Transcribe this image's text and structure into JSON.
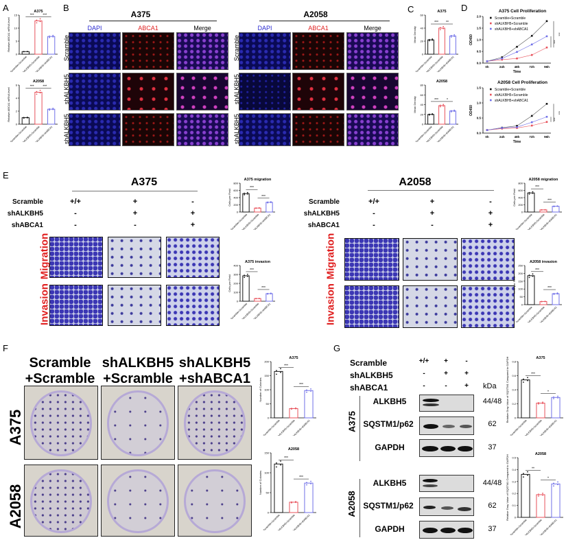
{
  "panels": {
    "A": {
      "letter": "A"
    },
    "B": {
      "letter": "B",
      "cell_lines": [
        "A375",
        "A2058"
      ],
      "channels": [
        "DAPI",
        "ABCA1",
        "Merge"
      ],
      "row_labels": [
        [
          "Scramble",
          "+Scramble"
        ],
        [
          "shALKBH5",
          "+Scramble"
        ],
        [
          "shALKBH5",
          "+shABCA1"
        ]
      ]
    },
    "C": {
      "letter": "C"
    },
    "D": {
      "letter": "D"
    },
    "E": {
      "letter": "E",
      "cell_lines": [
        "A375",
        "A2058"
      ],
      "conditions": {
        "labels": [
          "Scramble",
          "shALKBH5",
          "shABCA1"
        ],
        "columns": [
          [
            "+/+",
            "-",
            "-"
          ],
          [
            "+",
            "+",
            "-"
          ],
          [
            "-",
            "+",
            "+"
          ]
        ]
      },
      "row_labels": [
        "Migration",
        "Invasion"
      ]
    },
    "F": {
      "letter": "F",
      "column_labels": [
        [
          "Scramble",
          "+Scramble"
        ],
        [
          "shALKBH5",
          "+Scramble"
        ],
        [
          "shALKBH5",
          "+shABCA1"
        ]
      ],
      "row_labels": [
        "A375",
        "A2058"
      ]
    },
    "G": {
      "letter": "G",
      "conditions": {
        "labels": [
          "Scramble",
          "shALKBH5",
          "shABCA1"
        ],
        "columns": [
          [
            "+/+",
            "-",
            "-"
          ],
          [
            "+",
            "+",
            "-"
          ],
          [
            "-",
            "+",
            "+"
          ]
        ]
      },
      "kda_label": "kDa",
      "blots": [
        {
          "cell_line": "A375",
          "rows": [
            {
              "protein": "ALKBH5",
              "kda": "44/48"
            },
            {
              "protein": "SQSTM1/p62",
              "kda": "62"
            },
            {
              "protein": "GAPDH",
              "kda": "37"
            }
          ]
        },
        {
          "cell_line": "A2058",
          "rows": [
            {
              "protein": "ALKBH5",
              "kda": "44/48"
            },
            {
              "protein": "SQSTM1/p62",
              "kda": "62"
            },
            {
              "protein": "GAPDH",
              "kda": "37"
            }
          ]
        }
      ]
    }
  },
  "groups": [
    "Scramble+Scramble",
    "shALKBH5+Scramble",
    "shALKBH5+shABCA1"
  ],
  "colors": {
    "black": "#111111",
    "red": "#e8505a",
    "blue": "#6f6fe8",
    "red_label": "#e02020",
    "dapi": "#2a2ad0"
  },
  "chart_data": [
    {
      "id": "A-A375",
      "type": "bar",
      "title": "A375",
      "ylabel": "Relative ABCA1 mRNA level",
      "categories": [
        "Scramble+Scramble",
        "shALKBH5+Scramble",
        "shALKBH5+shABCA1"
      ],
      "values": [
        1.0,
        12.8,
        6.8
      ],
      "ylim": [
        0,
        15
      ],
      "yticks": [
        0,
        5,
        10,
        15
      ],
      "significance": [
        "***",
        "***"
      ]
    },
    {
      "id": "A-A2058",
      "type": "bar",
      "title": "A2058",
      "ylabel": "Relative ABCA1 mRNA level",
      "categories": [
        "Scramble+Scramble",
        "shALKBH5+Scramble",
        "shALKBH5+shABCA1"
      ],
      "values": [
        1.0,
        4.9,
        2.3
      ],
      "ylim": [
        0,
        6
      ],
      "yticks": [
        0,
        2,
        4,
        6
      ],
      "significance": [
        "***",
        "***"
      ]
    },
    {
      "id": "C-A375",
      "type": "bar",
      "title": "A375",
      "ylabel": "Mean Density",
      "categories": [
        "Scramble+Scramble",
        "shALKBH5+Scramble",
        "shALKBH5+shABCA1"
      ],
      "values": [
        22,
        40,
        28
      ],
      "ylim": [
        0,
        60
      ],
      "yticks": [
        0,
        20,
        40,
        60
      ],
      "significance": [
        "***",
        "**"
      ]
    },
    {
      "id": "C-A2058",
      "type": "bar",
      "title": "A2058",
      "ylabel": "Mean Density",
      "categories": [
        "Scramble+Scramble",
        "shALKBH5+Scramble",
        "shALKBH5+shABCA1"
      ],
      "values": [
        20,
        38,
        27
      ],
      "ylim": [
        0,
        80
      ],
      "yticks": [
        0,
        20,
        40,
        60,
        80
      ],
      "significance": [
        "***",
        "*"
      ]
    },
    {
      "id": "D-A375",
      "type": "line",
      "title": "A375 Cell Proliferation",
      "xlabel": "Time",
      "ylabel": "OD450",
      "x": [
        "0h",
        "24h",
        "48h",
        "72h",
        "96h"
      ],
      "ylim": [
        0,
        2.0
      ],
      "yticks": [
        0.0,
        0.5,
        1.0,
        1.5,
        2.0
      ],
      "series": [
        {
          "name": "Scramble+Scramble",
          "values": [
            0.08,
            0.25,
            0.7,
            1.17,
            1.8
          ]
        },
        {
          "name": "shALKBH5+Scramble",
          "values": [
            0.08,
            0.15,
            0.2,
            0.35,
            0.67
          ]
        },
        {
          "name": "shALKBH5+shABCA1",
          "values": [
            0.08,
            0.2,
            0.48,
            0.8,
            1.15
          ]
        }
      ],
      "significance": [
        "***",
        "***"
      ]
    },
    {
      "id": "D-A2058",
      "type": "line",
      "title": "A2058 Cell Proliferation",
      "xlabel": "Time",
      "ylabel": "OD450",
      "x": [
        "0h",
        "24h",
        "48h",
        "72h",
        "96h"
      ],
      "ylim": [
        0,
        1.5
      ],
      "yticks": [
        0.0,
        0.5,
        1.0,
        1.5
      ],
      "series": [
        {
          "name": "Scramble+Scramble",
          "values": [
            0.1,
            0.18,
            0.24,
            0.57,
            0.97
          ]
        },
        {
          "name": "shALKBH5+Scramble",
          "values": [
            0.1,
            0.15,
            0.17,
            0.25,
            0.37
          ]
        },
        {
          "name": "shALKBH5+shABCA1",
          "values": [
            0.1,
            0.17,
            0.2,
            0.36,
            0.54
          ]
        }
      ],
      "significance": [
        "***",
        "***"
      ]
    },
    {
      "id": "E-A375-migration",
      "type": "bar",
      "title": "A375 migration",
      "ylabel": "Cells per Field",
      "categories": [
        "Scramble+Scramble",
        "shALKBH5+Scramble",
        "shALKBH5+shABCA1"
      ],
      "values": [
        510,
        110,
        270
      ],
      "ylim": [
        0,
        800
      ],
      "yticks": [
        0,
        200,
        400,
        600,
        800
      ],
      "significance": [
        "***",
        "***"
      ]
    },
    {
      "id": "E-A375-invasion",
      "type": "bar",
      "title": "A375 invasion",
      "ylabel": "Cells per Field",
      "categories": [
        "Scramble+Scramble",
        "shALKBH5+Scramble",
        "shALKBH5+shABCA1"
      ],
      "values": [
        285,
        30,
        85
      ],
      "ylim": [
        0,
        400
      ],
      "yticks": [
        0,
        100,
        200,
        300,
        400
      ],
      "significance": [
        "***",
        "***"
      ]
    },
    {
      "id": "E-A2058-migration",
      "type": "bar",
      "title": "A2058 migration",
      "ylabel": "Cells per Field",
      "categories": [
        "Scramble+Scramble",
        "shALKBH5+Scramble",
        "shALKBH5+shABCA1"
      ],
      "values": [
        530,
        60,
        160
      ],
      "ylim": [
        0,
        800
      ],
      "yticks": [
        0,
        200,
        400,
        600,
        800
      ],
      "significance": [
        "***",
        "***"
      ]
    },
    {
      "id": "E-A2058-invasion",
      "type": "bar",
      "title": "A2058 invasion",
      "ylabel": "Cells per Field",
      "categories": [
        "Scramble+Scramble",
        "shALKBH5+Scramble",
        "shALKBH5+shABCA1"
      ],
      "values": [
        185,
        20,
        70
      ],
      "ylim": [
        0,
        250
      ],
      "yticks": [
        0,
        50,
        100,
        150,
        200,
        250
      ],
      "significance": [
        "***",
        "***"
      ]
    },
    {
      "id": "F-A375",
      "type": "bar",
      "title": "A375",
      "ylabel": "Number of Colonies",
      "categories": [
        "Scramble+Scramble",
        "shALKBH5+Scramble",
        "shALKBH5+shABCA1"
      ],
      "values": [
        165,
        33,
        97
      ],
      "ylim": [
        0,
        200
      ],
      "yticks": [
        0,
        50,
        100,
        150,
        200
      ],
      "significance": [
        "***",
        "***"
      ]
    },
    {
      "id": "F-A2058",
      "type": "bar",
      "title": "A2058",
      "ylabel": "Number of Colonies",
      "categories": [
        "Scramble+Scramble",
        "shALKBH5+Scramble",
        "shALKBH5+shABCA1"
      ],
      "values": [
        122,
        26,
        74
      ],
      "ylim": [
        0,
        150
      ],
      "yticks": [
        0,
        50,
        100,
        150
      ],
      "significance": [
        "***",
        "***"
      ]
    },
    {
      "id": "G-A375",
      "type": "bar",
      "title": "A375",
      "ylabel": "Relative Gray Value of SQSTM1 Compared to GAPDH",
      "categories": [
        "Scramble+Scramble",
        "shALKBH5+Scramble",
        "shALKBH5+shABCA1"
      ],
      "values": [
        0.54,
        0.21,
        0.29
      ],
      "ylim": [
        0,
        0.8
      ],
      "yticks": [
        0.0,
        0.2,
        0.4,
        0.6,
        0.8
      ],
      "significance": [
        "***",
        "*"
      ]
    },
    {
      "id": "G-A2058",
      "type": "bar",
      "title": "A2058",
      "ylabel": "Relative Gray Value of SQSTM1 Compared to GAPDH",
      "categories": [
        "Scramble+Scramble",
        "shALKBH5+Scramble",
        "shALKBH5+shABCA1"
      ],
      "values": [
        0.36,
        0.19,
        0.28
      ],
      "ylim": [
        0,
        0.5
      ],
      "yticks": [
        0.0,
        0.1,
        0.2,
        0.3,
        0.4,
        0.5
      ],
      "significance": [
        "**",
        "*"
      ]
    }
  ]
}
